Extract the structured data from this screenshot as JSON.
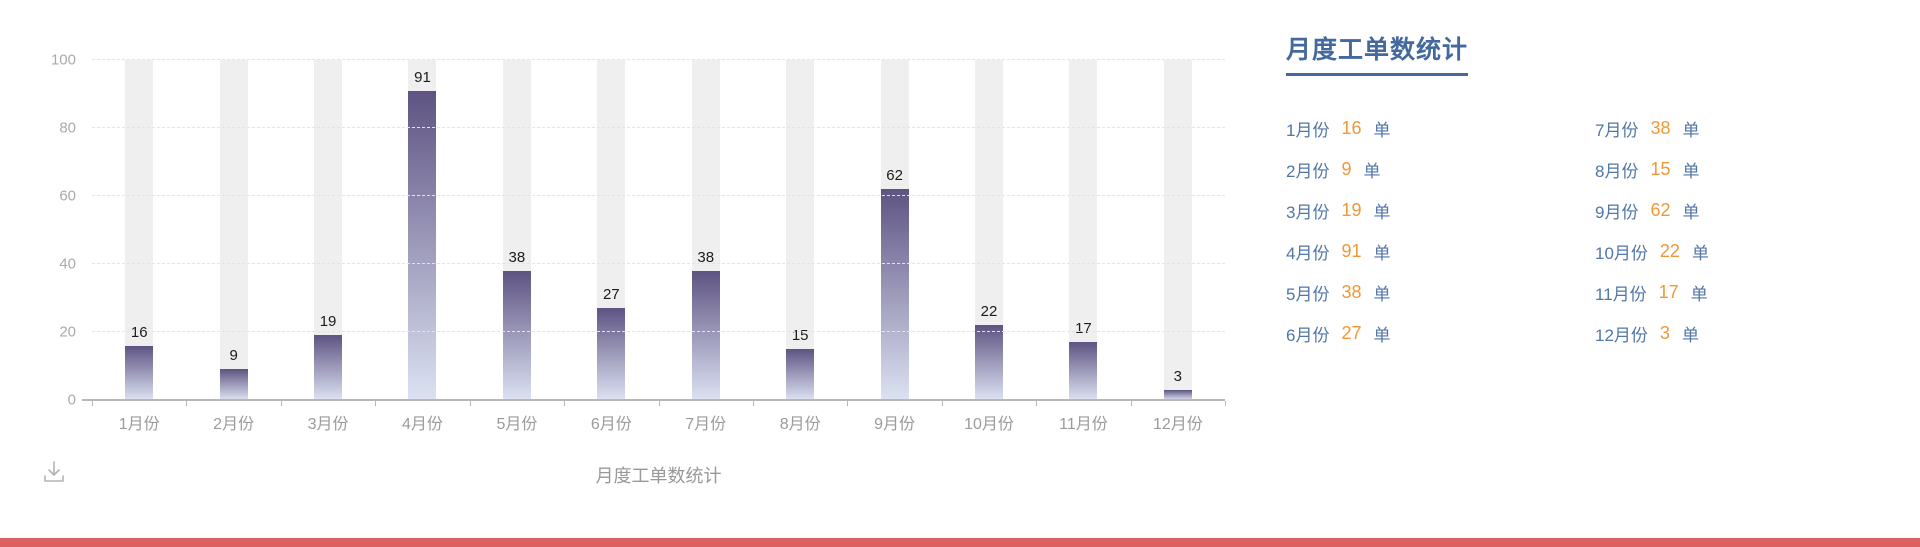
{
  "colors": {
    "accent_blue": "#44699e",
    "list_blue": "#5176a8",
    "accent_orange": "#f19735",
    "bar_gradient_top": "#5e5382",
    "bar_gradient_bottom": "#dce2f2",
    "band_gray": "#f0efef",
    "bottom_bar_red": "#dd6060"
  },
  "chart_data": {
    "type": "bar",
    "title": "月度工单数统计",
    "categories": [
      "1月份",
      "2月份",
      "3月份",
      "4月份",
      "5月份",
      "6月份",
      "7月份",
      "8月份",
      "9月份",
      "10月份",
      "11月份",
      "12月份"
    ],
    "values": [
      16,
      9,
      19,
      91,
      38,
      27,
      38,
      15,
      62,
      22,
      17,
      3
    ],
    "xlabel": "",
    "ylabel": "",
    "ylim": [
      0,
      100
    ],
    "yticks": [
      0,
      20,
      40,
      60,
      80,
      100
    ],
    "grid": "horizontal-dashed",
    "legend_position": "none",
    "value_labels": "above-bars",
    "background_bands": "full-height-gray"
  },
  "panel": {
    "title": "月度工单数统计",
    "unit": "单",
    "items": [
      {
        "label": "1月份",
        "value": "16"
      },
      {
        "label": "2月份",
        "value": "9"
      },
      {
        "label": "3月份",
        "value": "19"
      },
      {
        "label": "4月份",
        "value": "91"
      },
      {
        "label": "5月份",
        "value": "38"
      },
      {
        "label": "6月份",
        "value": "27"
      },
      {
        "label": "7月份",
        "value": "38"
      },
      {
        "label": "8月份",
        "value": "15"
      },
      {
        "label": "9月份",
        "value": "62"
      },
      {
        "label": "10月份",
        "value": "22"
      },
      {
        "label": "11月份",
        "value": "17"
      },
      {
        "label": "12月份",
        "value": "3"
      }
    ]
  },
  "toolbar": {
    "download_icon": "save-as-image"
  }
}
